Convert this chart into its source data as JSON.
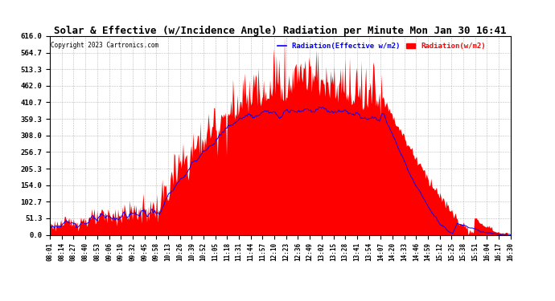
{
  "title": "Solar & Effective (w/Incidence Angle) Radiation per Minute Mon Jan 30 16:41",
  "copyright": "Copyright 2023 Cartronics.com",
  "legend_blue": "Radiation(Effective w/m2)",
  "legend_red": "Radiation(w/m2)",
  "ylim": [
    0,
    616.0
  ],
  "yticks": [
    0.0,
    51.3,
    102.7,
    154.0,
    205.3,
    256.7,
    308.0,
    359.3,
    410.7,
    462.0,
    513.3,
    564.7,
    616.0
  ],
  "background_color": "#ffffff",
  "fill_color": "#ff0000",
  "line_color": "#0000ff",
  "xtick_labels": [
    "08:01",
    "08:14",
    "08:27",
    "08:40",
    "08:53",
    "09:06",
    "09:19",
    "09:32",
    "09:45",
    "09:58",
    "10:13",
    "10:26",
    "10:39",
    "10:52",
    "11:05",
    "11:18",
    "11:31",
    "11:44",
    "11:57",
    "12:10",
    "12:23",
    "12:36",
    "12:49",
    "13:02",
    "13:15",
    "13:28",
    "13:41",
    "13:54",
    "14:07",
    "14:20",
    "14:33",
    "14:46",
    "14:59",
    "15:12",
    "15:25",
    "15:38",
    "15:51",
    "16:04",
    "16:17",
    "16:30"
  ]
}
